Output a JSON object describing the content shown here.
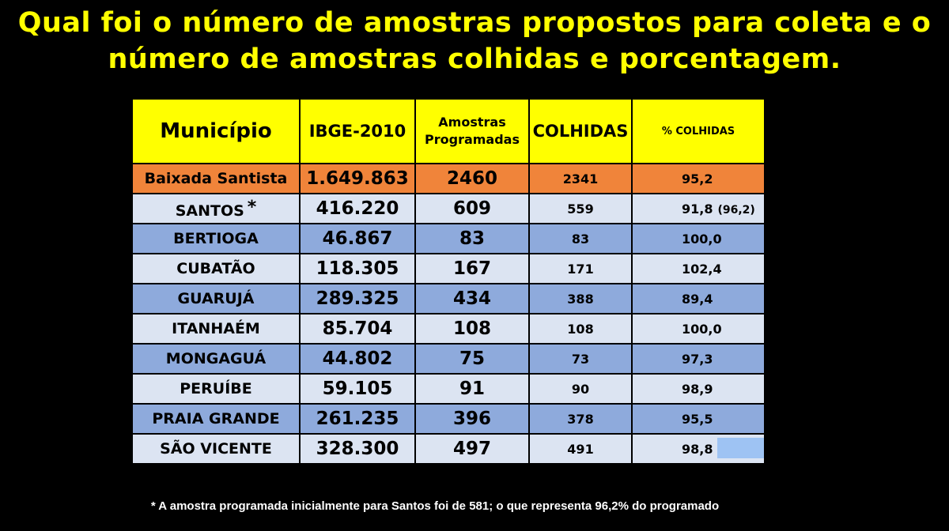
{
  "title": {
    "line1": "Qual foi o número de amostras propostos para coleta e o",
    "line2": "número de amostras colhidas e porcentagem."
  },
  "table": {
    "headers": {
      "municipio": "Município",
      "ibge": "IBGE-2010",
      "prog_line1": "Amostras",
      "prog_line2": "Programadas",
      "colhidas": "COLHIDAS",
      "pct": "% COLHIDAS"
    },
    "total": {
      "name": "Baixada Santista",
      "ibge": "1.649.863",
      "prog": "2460",
      "colhidas": "2341",
      "pct": "95,2"
    },
    "rows": [
      {
        "name": "SANTOS",
        "marker": "*",
        "ibge": "416.220",
        "prog": "609",
        "colhidas": "559",
        "pct": "91,8",
        "pct_note": "(96,2)"
      },
      {
        "name": "BERTIOGA",
        "ibge": "46.867",
        "prog": "83",
        "colhidas": "83",
        "pct": "100,0"
      },
      {
        "name": "CUBATÃO",
        "ibge": "118.305",
        "prog": "167",
        "colhidas": "171",
        "pct": "102,4"
      },
      {
        "name": "GUARUJÁ",
        "ibge": "289.325",
        "prog": "434",
        "colhidas": "388",
        "pct": "89,4"
      },
      {
        "name": "ITANHAÉM",
        "ibge": "85.704",
        "prog": "108",
        "colhidas": "108",
        "pct": "100,0"
      },
      {
        "name": "MONGAGUÁ",
        "ibge": "44.802",
        "prog": "75",
        "colhidas": "73",
        "pct": "97,3"
      },
      {
        "name": "PERUÍBE",
        "ibge": "59.105",
        "prog": "91",
        "colhidas": "90",
        "pct": "98,9"
      },
      {
        "name": "PRAIA GRANDE",
        "ibge": "261.235",
        "prog": "396",
        "colhidas": "378",
        "pct": "95,5"
      },
      {
        "name": "SÃO VICENTE",
        "ibge": "328.300",
        "prog": "497",
        "colhidas": "491",
        "pct": "98,8"
      }
    ]
  },
  "footnote": "* A amostra programada inicialmente para Santos foi de 581;  o que representa 96,2% do programado",
  "colors": {
    "title": "#ffff00",
    "header": "#ffff00",
    "total": "#f0843a",
    "row_light": "#dce4f2",
    "row_dark": "#8eaadc"
  }
}
